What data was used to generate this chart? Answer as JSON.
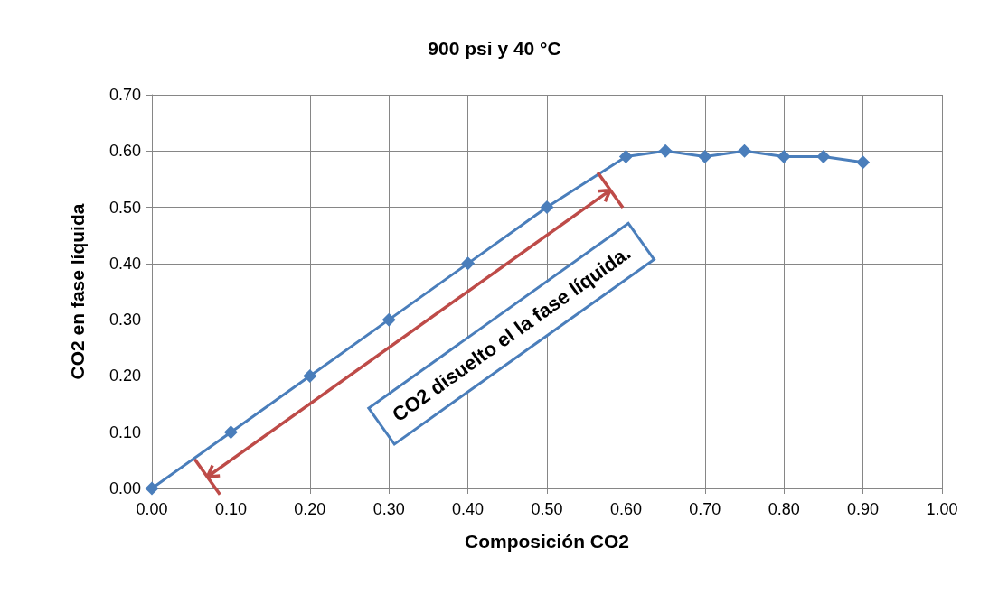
{
  "chart_data": {
    "type": "line",
    "title": "900 psi y 40 °C",
    "xlabel": "Composición CO2",
    "ylabel": "CO2 en fase líquida",
    "x": [
      0,
      0.1,
      0.2,
      0.3,
      0.4,
      0.5,
      0.6,
      0.65,
      0.7,
      0.75,
      0.8,
      0.85,
      0.9
    ],
    "series": [
      {
        "color": "#4a7ebb",
        "values": [
          0,
          0.1,
          0.2,
          0.3,
          0.4,
          0.5,
          0.59,
          0.6,
          0.59,
          0.6,
          0.59,
          0.59,
          0.58
        ]
      }
    ],
    "xlim": [
      0,
      1
    ],
    "xticks": [
      {
        "value": 0,
        "label": "0.00"
      },
      {
        "value": 0.1,
        "label": "0.10"
      },
      {
        "value": 0.2,
        "label": "0.20"
      },
      {
        "value": 0.3,
        "label": "0.30"
      },
      {
        "value": 0.4,
        "label": "0.40"
      },
      {
        "value": 0.5,
        "label": "0.50"
      },
      {
        "value": 0.6,
        "label": "0.60"
      },
      {
        "value": 0.7,
        "label": "0.70"
      },
      {
        "value": 0.8,
        "label": "0.80"
      },
      {
        "value": 0.9,
        "label": "0.90"
      },
      {
        "value": 1,
        "label": "1.00"
      }
    ],
    "ylim": [
      0,
      0.7
    ],
    "yticks": [
      {
        "value": 0,
        "label": "0.00"
      },
      {
        "value": 0.1,
        "label": "0.10"
      },
      {
        "value": 0.2,
        "label": "0.20"
      },
      {
        "value": 0.3,
        "label": "0.30"
      },
      {
        "value": 0.4,
        "label": "0.40"
      },
      {
        "value": 0.5,
        "label": "0.50"
      },
      {
        "value": 0.6,
        "label": "0.60"
      },
      {
        "value": 0.7,
        "label": "0.70"
      }
    ],
    "grid": true,
    "marker": "diamond",
    "line_style": "solid",
    "annotations": [
      "CO2 disuelto el la fase líquida."
    ]
  }
}
